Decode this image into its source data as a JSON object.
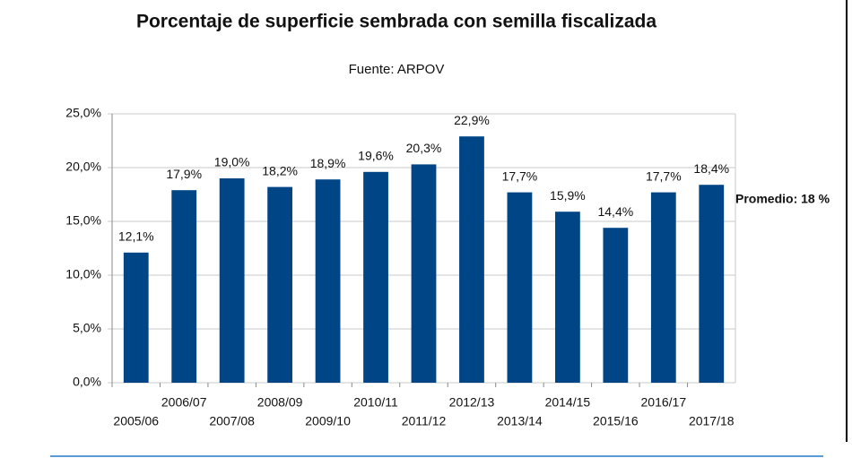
{
  "chart_data": {
    "type": "bar",
    "title": "Porcentaje de superficie sembrada con semilla fiscalizada",
    "subtitle": "Fuente: ARPOV",
    "annotation": "Promedio: 18 %",
    "categories": [
      "2005/06",
      "2006/07",
      "2007/08",
      "2008/09",
      "2009/10",
      "2010/11",
      "2011/12",
      "2012/13",
      "2013/14",
      "2014/15",
      "2015/16",
      "2016/17",
      "2017/18"
    ],
    "values": [
      12.1,
      17.9,
      19.0,
      18.2,
      18.9,
      19.6,
      20.3,
      22.9,
      17.7,
      15.9,
      14.4,
      17.7,
      18.4
    ],
    "value_labels": [
      "12,1%",
      "17,9%",
      "19,0%",
      "18,2%",
      "18,9%",
      "19,6%",
      "20,3%",
      "22,9%",
      "17,7%",
      "15,9%",
      "14,4%",
      "17,7%",
      "18,4%"
    ],
    "color": "#004586",
    "ylim": [
      0,
      25
    ],
    "yticks": [
      {
        "value": 0,
        "label": "0,0%"
      },
      {
        "value": 5,
        "label": "5,0%"
      },
      {
        "value": 10,
        "label": "10,0%"
      },
      {
        "value": 15,
        "label": "15,0%"
      },
      {
        "value": 20,
        "label": "20,0%"
      },
      {
        "value": 25,
        "label": "25,0%"
      }
    ],
    "grid": true
  }
}
